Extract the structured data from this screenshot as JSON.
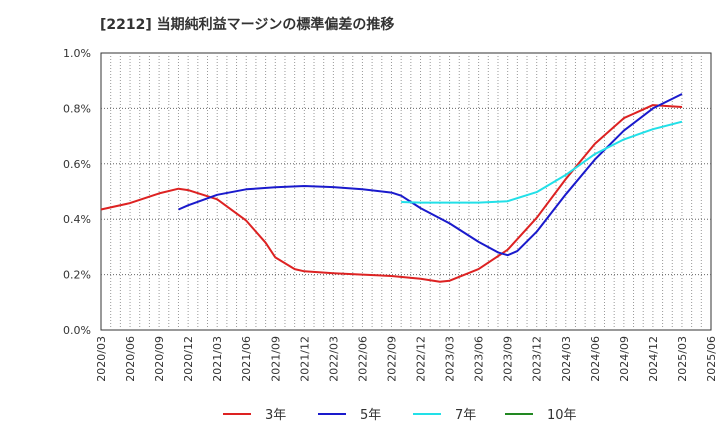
{
  "chart_data": {
    "type": "line",
    "title": "[2212]  当期純利益マージンの標準偏差の推移",
    "xlabel": "",
    "ylabel": "",
    "ylim": [
      0,
      1.0
    ],
    "y_ticks": [
      "0.0%",
      "0.2%",
      "0.4%",
      "0.6%",
      "0.8%",
      "1.0%"
    ],
    "x_ticks": [
      "2020/03",
      "2020/06",
      "2020/09",
      "2020/12",
      "2021/03",
      "2021/06",
      "2021/09",
      "2021/12",
      "2022/03",
      "2022/06",
      "2022/09",
      "2022/12",
      "2023/03",
      "2023/06",
      "2023/09",
      "2023/12",
      "2024/03",
      "2024/06",
      "2024/09",
      "2024/12",
      "2025/03",
      "2025/06"
    ],
    "grid": true,
    "legend_position": "bottom",
    "series": [
      {
        "name": "3年",
        "color": "#dd2222",
        "points": [
          [
            "2020/03",
            0.435
          ],
          [
            "2020/06",
            0.458
          ],
          [
            "2020/09",
            0.493
          ],
          [
            "2020/11",
            0.51
          ],
          [
            "2020/12",
            0.505
          ],
          [
            "2021/03",
            0.472
          ],
          [
            "2021/06",
            0.395
          ],
          [
            "2021/08",
            0.315
          ],
          [
            "2021/09",
            0.262
          ],
          [
            "2021/11",
            0.22
          ],
          [
            "2021/12",
            0.212
          ],
          [
            "2022/03",
            0.205
          ],
          [
            "2022/06",
            0.2
          ],
          [
            "2022/09",
            0.195
          ],
          [
            "2022/12",
            0.185
          ],
          [
            "2023/02",
            0.174
          ],
          [
            "2023/03",
            0.178
          ],
          [
            "2023/06",
            0.22
          ],
          [
            "2023/09",
            0.29
          ],
          [
            "2023/12",
            0.405
          ],
          [
            "2024/03",
            0.545
          ],
          [
            "2024/06",
            0.672
          ],
          [
            "2024/09",
            0.765
          ],
          [
            "2024/12",
            0.812
          ],
          [
            "2025/03",
            0.805
          ]
        ]
      },
      {
        "name": "5年",
        "color": "#1a1acc",
        "points": [
          [
            "2020/11",
            0.435
          ],
          [
            "2020/12",
            0.45
          ],
          [
            "2021/03",
            0.488
          ],
          [
            "2021/06",
            0.508
          ],
          [
            "2021/09",
            0.515
          ],
          [
            "2021/12",
            0.52
          ],
          [
            "2022/03",
            0.516
          ],
          [
            "2022/06",
            0.508
          ],
          [
            "2022/09",
            0.496
          ],
          [
            "2022/10",
            0.485
          ],
          [
            "2022/12",
            0.44
          ],
          [
            "2023/03",
            0.385
          ],
          [
            "2023/06",
            0.318
          ],
          [
            "2023/08",
            0.28
          ],
          [
            "2023/09",
            0.27
          ],
          [
            "2023/10",
            0.285
          ],
          [
            "2023/12",
            0.355
          ],
          [
            "2024/03",
            0.49
          ],
          [
            "2024/06",
            0.615
          ],
          [
            "2024/09",
            0.72
          ],
          [
            "2024/12",
            0.8
          ],
          [
            "2025/03",
            0.852
          ]
        ]
      },
      {
        "name": "7年",
        "color": "#22e0e8",
        "points": [
          [
            "2022/10",
            0.462
          ],
          [
            "2022/12",
            0.46
          ],
          [
            "2023/03",
            0.46
          ],
          [
            "2023/06",
            0.46
          ],
          [
            "2023/09",
            0.465
          ],
          [
            "2023/12",
            0.498
          ],
          [
            "2024/03",
            0.56
          ],
          [
            "2024/06",
            0.635
          ],
          [
            "2024/09",
            0.688
          ],
          [
            "2024/12",
            0.725
          ],
          [
            "2025/03",
            0.752
          ]
        ]
      },
      {
        "name": "10年",
        "color": "#228822",
        "points": []
      }
    ]
  }
}
